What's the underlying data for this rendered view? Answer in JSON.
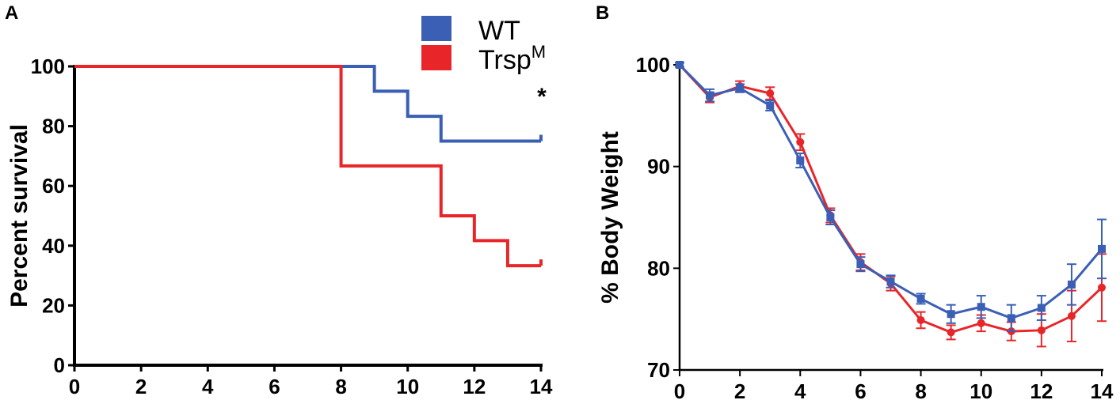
{
  "chart_data": [
    {
      "panel": "A",
      "type": "line",
      "step": true,
      "ylabel": "Percent survival",
      "xlabel": "",
      "xlim": [
        0,
        14
      ],
      "ylim": [
        0,
        100
      ],
      "xticks": [
        0,
        2,
        4,
        6,
        8,
        10,
        12,
        14
      ],
      "yticks": [
        0,
        20,
        40,
        60,
        80,
        100
      ],
      "legend": [
        {
          "label": "WT",
          "sup": "",
          "color": "#3a5fb5"
        },
        {
          "label": "Trsp",
          "sup": "M",
          "color": "#e8262a"
        }
      ],
      "annotation": "*",
      "series": [
        {
          "name": "WT",
          "color": "#3a5fb5",
          "x": [
            0,
            9,
            10,
            11,
            14
          ],
          "y": [
            100,
            91.7,
            83.3,
            75,
            75
          ]
        },
        {
          "name": "TrspM",
          "color": "#e8262a",
          "x": [
            0,
            8,
            11,
            12,
            13,
            14
          ],
          "y": [
            100,
            66.7,
            50,
            41.7,
            33.3,
            33.3
          ]
        }
      ]
    },
    {
      "panel": "B",
      "type": "line",
      "ylabel": "% Body Weight",
      "xlabel": "",
      "xlim": [
        0,
        14
      ],
      "ylim": [
        70,
        100
      ],
      "xticks": [
        0,
        2,
        4,
        6,
        8,
        10,
        12,
        14
      ],
      "yticks": [
        70,
        80,
        90,
        100
      ],
      "series": [
        {
          "name": "WT",
          "color": "#3a5fb5",
          "marker": "square",
          "x": [
            0,
            1,
            2,
            3,
            4,
            5,
            6,
            7,
            8,
            9,
            10,
            11,
            12,
            13,
            14
          ],
          "y": [
            100,
            97.0,
            97.7,
            96.0,
            90.6,
            85.0,
            80.4,
            78.7,
            77.0,
            75.5,
            76.2,
            75.1,
            76.1,
            78.4,
            81.9
          ],
          "err": [
            0.2,
            0.6,
            0.4,
            0.5,
            0.7,
            0.7,
            0.7,
            0.6,
            0.5,
            0.9,
            1.1,
            1.3,
            1.2,
            2.0,
            2.9
          ]
        },
        {
          "name": "TrspM",
          "color": "#e8262a",
          "marker": "circle",
          "x": [
            0,
            1,
            2,
            3,
            4,
            5,
            6,
            7,
            8,
            9,
            10,
            11,
            12,
            13,
            14
          ],
          "y": [
            100,
            96.8,
            97.9,
            97.2,
            92.4,
            85.2,
            80.6,
            78.5,
            74.9,
            73.7,
            74.6,
            73.8,
            73.9,
            75.3,
            78.1
          ],
          "err": [
            0.2,
            0.5,
            0.5,
            0.6,
            0.8,
            0.7,
            0.8,
            0.7,
            0.8,
            0.7,
            0.8,
            0.9,
            1.6,
            2.5,
            3.3
          ]
        }
      ]
    }
  ]
}
